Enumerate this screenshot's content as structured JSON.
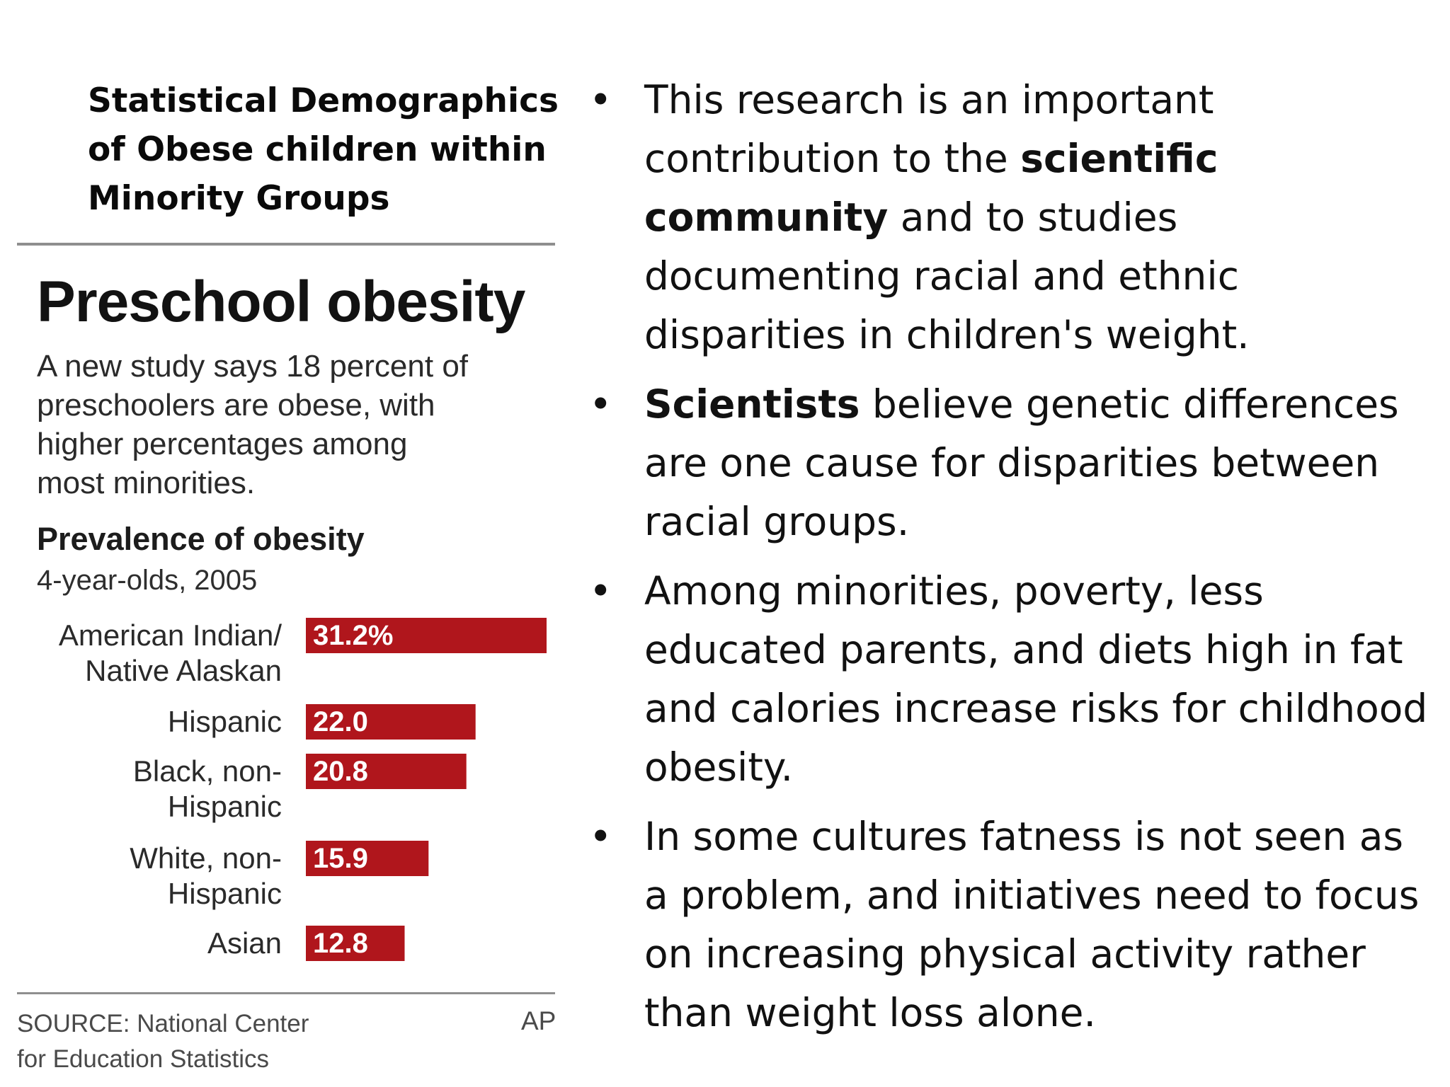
{
  "slide": {
    "heading_lines": [
      "Statistical Demographics",
      "of Obese children within",
      "Minority Groups"
    ]
  },
  "chart_data": {
    "type": "bar",
    "orientation": "horizontal",
    "title": "Preschool obesity",
    "subtitle_lines": [
      "A new study says 18 percent of",
      "preschoolers are obese, with",
      "higher percentages among",
      "most minorities."
    ],
    "chart_heading": "Prevalence of obesity",
    "chart_subheading": "4-year-olds, 2005",
    "categories": [
      [
        "American Indian/",
        "Native Alaskan"
      ],
      [
        "Hispanic"
      ],
      [
        "Black, non-",
        "Hispanic"
      ],
      [
        "White, non-",
        "Hispanic"
      ],
      [
        "Asian"
      ]
    ],
    "values": [
      31.2,
      22.0,
      20.8,
      15.9,
      12.8
    ],
    "value_labels": [
      "31.2%",
      "22.0",
      "20.8",
      "15.9",
      "12.8"
    ],
    "bar_color": "#b0161c",
    "grid": false,
    "legend": "none",
    "source_lines": [
      "SOURCE: National Center",
      "for Education Statistics"
    ],
    "credit": "AP"
  },
  "bullets": [
    [
      {
        "t": "This research is an important contribution to the ",
        "b": false
      },
      {
        "t": "scientific community",
        "b": true
      },
      {
        "t": " and to studies documenting racial and ethnic disparities in children's weight.",
        "b": false
      }
    ],
    [
      {
        "t": "Scientists",
        "b": true
      },
      {
        "t": " believe genetic differences are one cause for disparities between racial groups.",
        "b": false
      }
    ],
    [
      {
        "t": "Among minorities, poverty, less educated parents, and diets high in fat and calories increase risks for childhood obesity.",
        "b": false
      }
    ],
    [
      {
        "t": "In some cultures fatness is not seen as a problem, and initiatives need to focus on increasing physical activity rather than weight loss alone.",
        "b": false
      }
    ]
  ],
  "bullet_symbol": "•"
}
